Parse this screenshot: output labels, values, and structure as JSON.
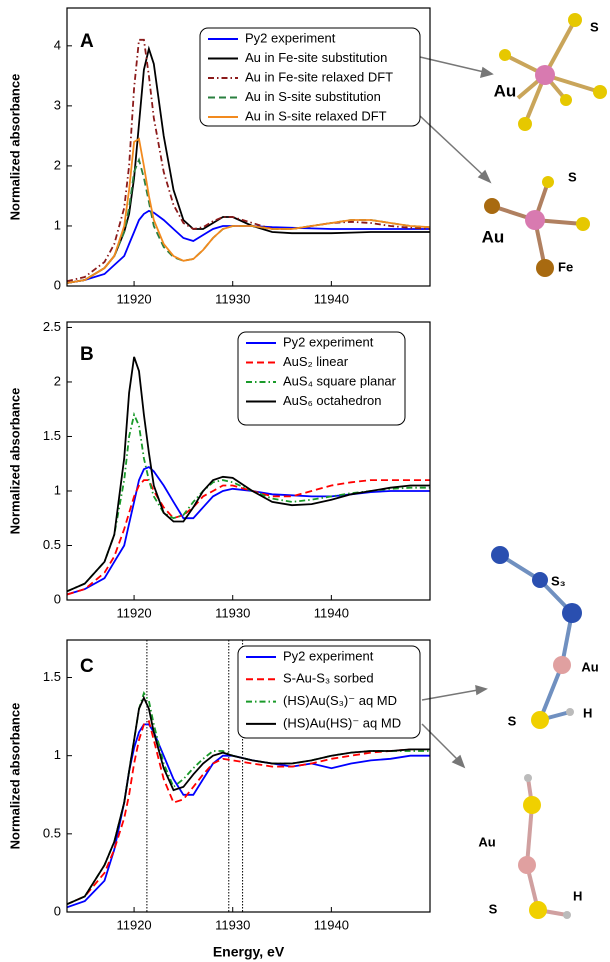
{
  "chart_data": [
    {
      "type": "line",
      "panel_label": "A",
      "ylabel": "Normalized absorbance",
      "x": [
        11913.2,
        11915,
        11917,
        11918,
        11919,
        11919.5,
        11920,
        11920.5,
        11921,
        11921.5,
        11922,
        11923,
        11924,
        11925,
        11926,
        11927,
        11928,
        11929,
        11930,
        11932,
        11934,
        11936,
        11938,
        11940,
        11942,
        11944,
        11946,
        11948,
        11950
      ],
      "xlim": [
        11913.2,
        11950
      ],
      "ylim": [
        0,
        4.63
      ],
      "xticks": [
        11920,
        11930,
        11940
      ],
      "yticks": [
        0,
        1,
        2,
        3,
        4
      ],
      "series": [
        {
          "name": "Py2 experiment",
          "color": "#0000ff",
          "style": "solid",
          "values": [
            0.05,
            0.1,
            0.2,
            0.35,
            0.5,
            0.7,
            0.9,
            1.1,
            1.2,
            1.25,
            1.22,
            1.1,
            0.95,
            0.8,
            0.75,
            0.85,
            0.95,
            1.0,
            1.0,
            1.0,
            0.98,
            0.97,
            0.96,
            0.95,
            0.95,
            0.95,
            0.95,
            0.95,
            0.95
          ]
        },
        {
          "name": "Au in Fe-site substitution",
          "color": "#000000",
          "style": "solid",
          "values": [
            0.05,
            0.1,
            0.3,
            0.5,
            0.9,
            1.2,
            1.8,
            2.7,
            3.6,
            3.95,
            3.7,
            2.5,
            1.6,
            1.1,
            0.95,
            0.95,
            1.05,
            1.15,
            1.15,
            1.0,
            0.9,
            0.88,
            0.88,
            0.88,
            0.89,
            0.9,
            0.9,
            0.9,
            0.9
          ]
        },
        {
          "name": "Au in Fe-site relaxed DFT",
          "color": "#8b1a1a",
          "style": "dashdot",
          "values": [
            0.08,
            0.15,
            0.4,
            0.7,
            1.3,
            2.0,
            3.3,
            4.1,
            4.1,
            3.5,
            2.8,
            1.9,
            1.35,
            1.05,
            0.95,
            0.98,
            1.08,
            1.15,
            1.15,
            1.05,
            0.95,
            0.95,
            1.0,
            1.05,
            1.07,
            1.05,
            1.0,
            0.97,
            0.95
          ]
        },
        {
          "name": "Au in S-site substitution",
          "color": "#2a7f3f",
          "style": "dashed",
          "values": [
            0.05,
            0.1,
            0.3,
            0.5,
            0.9,
            1.3,
            1.9,
            2.1,
            1.8,
            1.4,
            1.0,
            0.65,
            0.48,
            0.42,
            0.45,
            0.6,
            0.8,
            0.95,
            1.0,
            1.0,
            0.95,
            0.95,
            1.0,
            1.05,
            1.1,
            1.1,
            1.05,
            1.0,
            0.98
          ]
        },
        {
          "name": "Au in S-site relaxed DFT",
          "color": "#f28a1e",
          "style": "solid",
          "values": [
            0.05,
            0.1,
            0.3,
            0.5,
            1.0,
            1.6,
            2.4,
            2.45,
            2.0,
            1.5,
            1.1,
            0.7,
            0.5,
            0.42,
            0.45,
            0.6,
            0.8,
            0.95,
            1.0,
            1.0,
            0.95,
            0.95,
            1.0,
            1.05,
            1.1,
            1.1,
            1.05,
            1.0,
            0.98
          ]
        }
      ],
      "annotations": [
        "S",
        "Au",
        "S",
        "Au",
        "Fe"
      ]
    },
    {
      "type": "line",
      "panel_label": "B",
      "ylabel": "Normalized absorbance",
      "x": [
        11913.2,
        11915,
        11917,
        11918,
        11919,
        11919.5,
        11920,
        11920.5,
        11921,
        11921.5,
        11922,
        11923,
        11924,
        11925,
        11926,
        11927,
        11928,
        11929,
        11930,
        11932,
        11934,
        11936,
        11938,
        11940,
        11942,
        11944,
        11946,
        11948,
        11950
      ],
      "xlim": [
        11913.2,
        11950
      ],
      "ylim": [
        0,
        2.55
      ],
      "xticks": [
        11920,
        11930,
        11940
      ],
      "yticks": [
        0,
        0.5,
        1,
        1.5,
        2,
        2.5
      ],
      "series": [
        {
          "name": "Py2 experiment",
          "color": "#0000ff",
          "style": "solid",
          "values": [
            0.05,
            0.1,
            0.2,
            0.35,
            0.5,
            0.7,
            0.9,
            1.1,
            1.2,
            1.22,
            1.18,
            1.05,
            0.9,
            0.75,
            0.75,
            0.85,
            0.95,
            1.0,
            1.02,
            1.0,
            0.97,
            0.96,
            0.95,
            0.95,
            0.97,
            0.99,
            1.0,
            1.0,
            1.0
          ]
        },
        {
          "name": "AuS₂  linear",
          "color": "#ff0000",
          "style": "dashed",
          "values": [
            0.05,
            0.1,
            0.25,
            0.4,
            0.65,
            0.8,
            0.95,
            1.05,
            1.1,
            1.1,
            1.0,
            0.85,
            0.75,
            0.78,
            0.85,
            0.95,
            1.0,
            1.05,
            1.05,
            1.0,
            0.95,
            0.95,
            1.0,
            1.05,
            1.08,
            1.1,
            1.1,
            1.1,
            1.1
          ]
        },
        {
          "name": "AuS₄  square planar",
          "color": "#1a9a2a",
          "style": "dashdot",
          "values": [
            0.08,
            0.15,
            0.35,
            0.6,
            1.1,
            1.5,
            1.7,
            1.6,
            1.3,
            1.1,
            0.95,
            0.8,
            0.75,
            0.78,
            0.9,
            1.0,
            1.08,
            1.1,
            1.08,
            1.0,
            0.93,
            0.9,
            0.92,
            0.95,
            0.98,
            1.0,
            1.02,
            1.03,
            1.03
          ]
        },
        {
          "name": "AuS₆  octahedron",
          "color": "#000000",
          "style": "solid",
          "values": [
            0.08,
            0.15,
            0.35,
            0.6,
            1.3,
            1.9,
            2.23,
            2.1,
            1.7,
            1.35,
            1.05,
            0.8,
            0.72,
            0.72,
            0.85,
            1.0,
            1.1,
            1.13,
            1.12,
            1.0,
            0.9,
            0.87,
            0.88,
            0.92,
            0.97,
            1.0,
            1.03,
            1.05,
            1.05
          ]
        }
      ]
    },
    {
      "type": "line",
      "panel_label": "C",
      "ylabel": "Normalized absorbance",
      "xlabel": "Energy, eV",
      "x": [
        11913.2,
        11915,
        11917,
        11918,
        11919,
        11919.5,
        11920,
        11920.5,
        11921,
        11921.5,
        11922,
        11923,
        11924,
        11925,
        11926,
        11927,
        11928,
        11929,
        11930,
        11932,
        11934,
        11936,
        11938,
        11940,
        11942,
        11944,
        11946,
        11948,
        11950
      ],
      "xlim": [
        11913.2,
        11950
      ],
      "ylim": [
        0,
        1.74
      ],
      "xticks": [
        11920,
        11930,
        11940
      ],
      "yticks": [
        0,
        0.5,
        1,
        1.5
      ],
      "vlines": [
        11921.3,
        11929.6,
        11931.0
      ],
      "series": [
        {
          "name": "Py2 experiment",
          "color": "#0000ff",
          "style": "solid",
          "values": [
            0.03,
            0.07,
            0.2,
            0.4,
            0.7,
            0.9,
            1.05,
            1.15,
            1.2,
            1.2,
            1.15,
            1.0,
            0.85,
            0.75,
            0.75,
            0.85,
            0.95,
            1.0,
            1.0,
            0.97,
            0.95,
            0.93,
            0.95,
            0.92,
            0.95,
            0.97,
            0.98,
            1.0,
            1.0
          ]
        },
        {
          "name": "S-Au-S₃ sorbed",
          "color": "#ff0000",
          "style": "dashed",
          "values": [
            0.05,
            0.1,
            0.25,
            0.4,
            0.6,
            0.75,
            0.95,
            1.1,
            1.2,
            1.22,
            1.1,
            0.85,
            0.7,
            0.72,
            0.8,
            0.88,
            0.95,
            0.98,
            0.97,
            0.95,
            0.93,
            0.93,
            0.95,
            0.98,
            1.0,
            1.02,
            1.03,
            1.04,
            1.04
          ]
        },
        {
          "name": "(HS)Au(S₃)⁻ aq MD",
          "color": "#1a9a2a",
          "style": "dashdot",
          "values": [
            0.05,
            0.1,
            0.3,
            0.45,
            0.7,
            0.9,
            1.1,
            1.3,
            1.4,
            1.35,
            1.2,
            0.95,
            0.8,
            0.85,
            0.92,
            0.98,
            1.03,
            1.03,
            1.0,
            0.97,
            0.95,
            0.95,
            0.97,
            1.0,
            1.02,
            1.03,
            1.03,
            1.03,
            1.03
          ]
        },
        {
          "name": "(HS)Au(HS)⁻ aq MD",
          "color": "#000000",
          "style": "solid",
          "values": [
            0.05,
            0.1,
            0.3,
            0.45,
            0.7,
            0.9,
            1.1,
            1.3,
            1.37,
            1.3,
            1.15,
            0.92,
            0.78,
            0.8,
            0.88,
            0.95,
            1.0,
            1.02,
            1.0,
            0.97,
            0.95,
            0.95,
            0.97,
            1.0,
            1.02,
            1.03,
            1.03,
            1.04,
            1.04
          ]
        }
      ],
      "annotations": [
        "S₃",
        "Au",
        "S",
        "H",
        "Au",
        "S",
        "H"
      ]
    }
  ]
}
